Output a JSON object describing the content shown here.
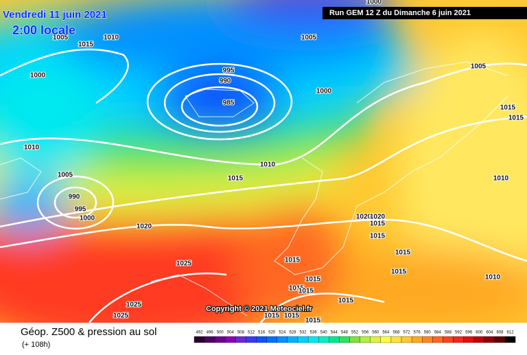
{
  "header": {
    "date": "Vendredi 11 juin 2021",
    "time": "2:00 locale",
    "run": "Run GEM 12 Z du Dimanche 6 juin 2021"
  },
  "copyright": "Copyright © 2021 Meteociel.fr",
  "footer": {
    "title": "Géop. Z500 & pression au sol",
    "lead": "(+ 108h)"
  },
  "isobar_labels": [
    "1000",
    "1005",
    "1015",
    "1010",
    "1005",
    "1000",
    "995",
    "990",
    "985",
    "1000",
    "1005",
    "1015",
    "1015",
    "1010",
    "1010",
    "1015",
    "1005",
    "990",
    "995",
    "1000",
    "1010",
    "1020",
    "1020",
    "1020",
    "1015",
    "1015",
    "1015",
    "1015",
    "1025",
    "1015",
    "1010",
    "1015",
    "1015",
    "1015",
    "1025",
    "1015",
    "1025",
    "1015",
    "1015",
    "1015"
  ],
  "scale": {
    "values": [
      492,
      496,
      500,
      504,
      508,
      512,
      516,
      520,
      524,
      528,
      532,
      536,
      540,
      544,
      548,
      552,
      556,
      560,
      564,
      568,
      572,
      576,
      580,
      584,
      588,
      592,
      596,
      600,
      604,
      608,
      612
    ],
    "colors": [
      "#2a0030",
      "#4b0060",
      "#6a008a",
      "#8a00b0",
      "#6a2ad0",
      "#3a3af0",
      "#1050ff",
      "#0070ff",
      "#0090ff",
      "#00b0ff",
      "#00d0ff",
      "#00e8f0",
      "#00f0c0",
      "#00e890",
      "#30e060",
      "#80e040",
      "#b0f040",
      "#e0f040",
      "#ffff40",
      "#ffe040",
      "#ffc830",
      "#ffa820",
      "#ff8820",
      "#ff6820",
      "#ff4020",
      "#ff2020",
      "#e01010",
      "#c00000",
      "#900000",
      "#600000",
      "#000000"
    ]
  }
}
